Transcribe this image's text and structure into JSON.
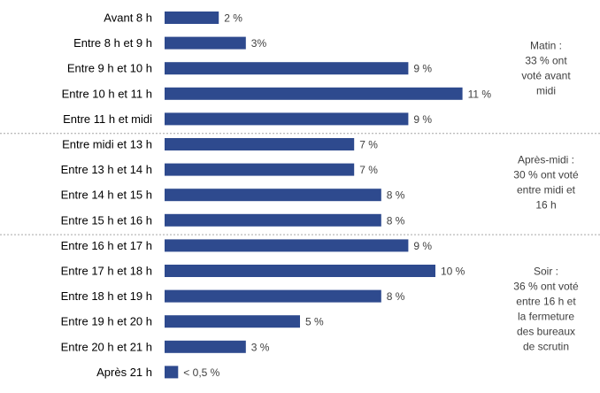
{
  "chart_data": {
    "type": "bar",
    "orientation": "horizontal",
    "bar_color": "#2E4A8E",
    "grid": false,
    "xlim": [
      0,
      12
    ],
    "categories": [
      "Avant 8 h",
      "Entre 8 h et 9 h",
      "Entre 9 h et 10 h",
      "Entre 10 h et 11 h",
      "Entre 11 h et midi",
      "Entre midi et 13 h",
      "Entre 13 h et 14 h",
      "Entre 14 h et 15 h",
      "Entre 15 h et 16 h",
      "Entre 16 h et 17 h",
      "Entre 17 h et 18 h",
      "Entre 18 h et 19 h",
      "Entre 19 h et 20 h",
      "Entre 20 h et 21 h",
      "Après 21 h"
    ],
    "values": [
      2,
      3,
      9,
      11,
      9,
      7,
      7,
      8,
      8,
      9,
      10,
      8,
      5,
      3,
      0.5
    ],
    "value_labels": [
      "2 %",
      "3%",
      "9 %",
      "11 %",
      "9 %",
      "7 %",
      "7 %",
      "8 %",
      "8 %",
      "9 %",
      "10 %",
      "8 %",
      "5 %",
      "3 %",
      "< 0,5 %"
    ],
    "groups": [
      {
        "first": 0,
        "last": 4,
        "note": [
          "Matin :",
          "33 % ont",
          "voté avant",
          "midi"
        ]
      },
      {
        "first": 5,
        "last": 8,
        "note": [
          "Après-midi :",
          "30 % ont voté",
          "entre midi et",
          "16 h"
        ]
      },
      {
        "first": 9,
        "last": 14,
        "note": [
          "Soir :",
          "36 % ont voté",
          "entre 16 h et",
          "la fermeture",
          "des bureaux",
          "de scrutin"
        ]
      }
    ]
  }
}
